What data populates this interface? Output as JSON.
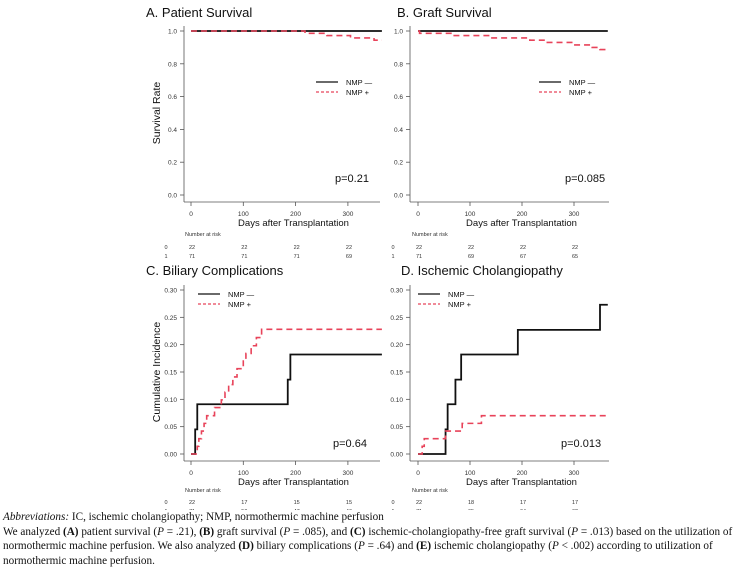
{
  "chart_data": [
    {
      "id": "A",
      "type": "line",
      "subtype": "kaplan-meier-step",
      "title": "A. Patient Survival",
      "xlabel": "Days after Transplantation",
      "ylabel": "Survival Rate",
      "xlim": [
        0,
        365
      ],
      "ylim": [
        0,
        1.0
      ],
      "xticks": [
        0,
        100,
        200,
        300
      ],
      "yticks": [
        0.0,
        0.2,
        0.4,
        0.6,
        0.8,
        1.0
      ],
      "ytick_labels": [
        "0.0",
        "0.2",
        "0.4",
        "0.6",
        "0.8",
        "1.0"
      ],
      "legend": [
        "NMP —",
        "NMP +"
      ],
      "legend_position": "center-right",
      "annotation": "p=0.21",
      "series": [
        {
          "name": "NMP —",
          "style": "solid",
          "color": "#111111",
          "steps": [
            [
              0,
              1.0
            ],
            [
              365,
              1.0
            ]
          ]
        },
        {
          "name": "NMP +",
          "style": "dashed",
          "color": "#e8435a",
          "steps": [
            [
              0,
              1.0
            ],
            [
              218,
              0.986
            ],
            [
              260,
              0.972
            ],
            [
              305,
              0.958
            ],
            [
              350,
              0.944
            ],
            [
              365,
              0.944
            ]
          ]
        }
      ],
      "risk_table": {
        "header": "Number at risk",
        "groups": [
          "0",
          "1"
        ],
        "times": [
          0,
          100,
          200,
          300
        ],
        "rows": [
          [
            "22",
            "22",
            "22",
            "22"
          ],
          [
            "71",
            "71",
            "71",
            "69"
          ]
        ]
      }
    },
    {
      "id": "B",
      "type": "line",
      "subtype": "kaplan-meier-step",
      "title": "B. Graft Survival",
      "xlabel": "Days after Transplantation",
      "ylabel": "",
      "xlim": [
        0,
        365
      ],
      "ylim": [
        0,
        1.0
      ],
      "xticks": [
        0,
        100,
        200,
        300
      ],
      "yticks": [
        0.0,
        0.2,
        0.4,
        0.6,
        0.8,
        1.0
      ],
      "ytick_labels": [
        "0.0",
        "0.2",
        "0.4",
        "0.6",
        "0.8",
        "1.0"
      ],
      "legend": [
        "NMP —",
        "NMP +"
      ],
      "legend_position": "center-right",
      "annotation": "p=0.085",
      "series": [
        {
          "name": "NMP —",
          "style": "solid",
          "color": "#111111",
          "steps": [
            [
              0,
              1.0
            ],
            [
              365,
              1.0
            ]
          ]
        },
        {
          "name": "NMP +",
          "style": "dashed",
          "color": "#e8435a",
          "steps": [
            [
              0,
              1.0
            ],
            [
              3,
              0.986
            ],
            [
              65,
              0.972
            ],
            [
              140,
              0.958
            ],
            [
              215,
              0.944
            ],
            [
              245,
              0.93
            ],
            [
              300,
              0.915
            ],
            [
              335,
              0.9
            ],
            [
              350,
              0.887
            ],
            [
              365,
              0.887
            ]
          ]
        }
      ],
      "risk_table": {
        "header": "Number at risk",
        "groups": [
          "0",
          "1"
        ],
        "times": [
          0,
          100,
          200,
          300
        ],
        "rows": [
          [
            "22",
            "22",
            "22",
            "22"
          ],
          [
            "71",
            "69",
            "67",
            "65"
          ]
        ]
      }
    },
    {
      "id": "C",
      "type": "line",
      "subtype": "cumulative-incidence-step",
      "title": "C. Biliary Complications",
      "xlabel": "Days after Transplantation",
      "ylabel": "Cumulative Incidence",
      "xlim": [
        0,
        365
      ],
      "ylim": [
        0,
        0.3
      ],
      "xticks": [
        0,
        100,
        200,
        300
      ],
      "yticks": [
        0.0,
        0.05,
        0.1,
        0.15,
        0.2,
        0.25,
        0.3
      ],
      "ytick_labels": [
        "0.00",
        "0.05",
        "0.10",
        "0.15",
        "0.20",
        "0.25",
        "0.30"
      ],
      "legend": [
        "NMP —",
        "NMP +"
      ],
      "legend_position": "top-left",
      "annotation": "p=0.64",
      "series": [
        {
          "name": "NMP —",
          "style": "solid",
          "color": "#111111",
          "steps": [
            [
              0,
              0.0
            ],
            [
              8,
              0.045
            ],
            [
              12,
              0.091
            ],
            [
              185,
              0.136
            ],
            [
              190,
              0.182
            ],
            [
              365,
              0.182
            ]
          ]
        },
        {
          "name": "NMP +",
          "style": "dashed",
          "color": "#e8435a",
          "steps": [
            [
              0,
              0.0
            ],
            [
              12,
              0.014
            ],
            [
              15,
              0.028
            ],
            [
              20,
              0.042
            ],
            [
              25,
              0.056
            ],
            [
              30,
              0.07
            ],
            [
              45,
              0.085
            ],
            [
              58,
              0.099
            ],
            [
              65,
              0.113
            ],
            [
              72,
              0.127
            ],
            [
              80,
              0.141
            ],
            [
              88,
              0.156
            ],
            [
              100,
              0.17
            ],
            [
              105,
              0.184
            ],
            [
              115,
              0.198
            ],
            [
              125,
              0.213
            ],
            [
              135,
              0.228
            ],
            [
              365,
              0.228
            ]
          ]
        }
      ],
      "risk_table": {
        "header": "Number at risk",
        "groups": [
          "0",
          "1"
        ],
        "times": [
          0,
          100,
          200,
          300
        ],
        "rows": [
          [
            "22",
            "17",
            "15",
            "15"
          ],
          [
            "71",
            "50",
            "47",
            "46"
          ]
        ]
      }
    },
    {
      "id": "D",
      "type": "line",
      "subtype": "cumulative-incidence-step",
      "title": "D. Ischemic Cholangiopathy",
      "xlabel": "Days after Transplantation",
      "ylabel": "",
      "xlim": [
        0,
        365
      ],
      "ylim": [
        0,
        0.3
      ],
      "xticks": [
        0,
        100,
        200,
        300
      ],
      "yticks": [
        0.0,
        0.05,
        0.1,
        0.15,
        0.2,
        0.25,
        0.3
      ],
      "ytick_labels": [
        "0.00",
        "0.05",
        "0.10",
        "0.15",
        "0.20",
        "0.25",
        "0.30"
      ],
      "legend": [
        "NMP —",
        "NMP +"
      ],
      "legend_position": "top-left",
      "annotation": "p=0.013",
      "series": [
        {
          "name": "NMP —",
          "style": "solid",
          "color": "#111111",
          "steps": [
            [
              0,
              0.0
            ],
            [
              53,
              0.045
            ],
            [
              57,
              0.091
            ],
            [
              72,
              0.136
            ],
            [
              83,
              0.182
            ],
            [
              192,
              0.227
            ],
            [
              350,
              0.273
            ],
            [
              365,
              0.273
            ]
          ]
        },
        {
          "name": "NMP +",
          "style": "dashed",
          "color": "#e8435a",
          "steps": [
            [
              0,
              0.0
            ],
            [
              8,
              0.014
            ],
            [
              12,
              0.028
            ],
            [
              53,
              0.042
            ],
            [
              85,
              0.056
            ],
            [
              122,
              0.07
            ],
            [
              365,
              0.07
            ]
          ]
        }
      ],
      "risk_table": {
        "header": "Number at risk",
        "groups": [
          "0",
          "1"
        ],
        "times": [
          0,
          100,
          200,
          300
        ],
        "rows": [
          [
            "22",
            "18",
            "17",
            "17"
          ],
          [
            "71",
            "65",
            "64",
            "62"
          ]
        ]
      }
    }
  ],
  "caption": {
    "abbrev_label": "Abbreviations:",
    "abbrev_text": " IC, ischemic cholangiopathy; NMP, normothermic machine perfusion",
    "line2": [
      {
        "t": "We analyzed ",
        "s": ""
      },
      {
        "t": "(A)",
        "s": "b"
      },
      {
        "t": " patient survival (",
        "s": ""
      },
      {
        "t": "P",
        "s": "i"
      },
      {
        "t": " = .21), ",
        "s": ""
      },
      {
        "t": "(B)",
        "s": "b"
      },
      {
        "t": " graft survival (",
        "s": ""
      },
      {
        "t": "P",
        "s": "i"
      },
      {
        "t": " = .085), and ",
        "s": ""
      },
      {
        "t": "(C)",
        "s": "b"
      },
      {
        "t": " ischemic-cholangiopathy-free graft survival (",
        "s": ""
      },
      {
        "t": "P",
        "s": "i"
      },
      {
        "t": " = .013) based on the utilization of normothermic machine perfusion. We also analyzed ",
        "s": ""
      },
      {
        "t": "(D)",
        "s": "b"
      },
      {
        "t": " biliary complications (",
        "s": ""
      },
      {
        "t": "P",
        "s": "i"
      },
      {
        "t": " = .64) and ",
        "s": ""
      },
      {
        "t": "(E)",
        "s": "b"
      },
      {
        "t": " ischemic cholangiopathy (",
        "s": ""
      },
      {
        "t": "P",
        "s": "i"
      },
      {
        "t": " < .002) according to utilization of normothermic machine perfusion.",
        "s": ""
      }
    ]
  }
}
